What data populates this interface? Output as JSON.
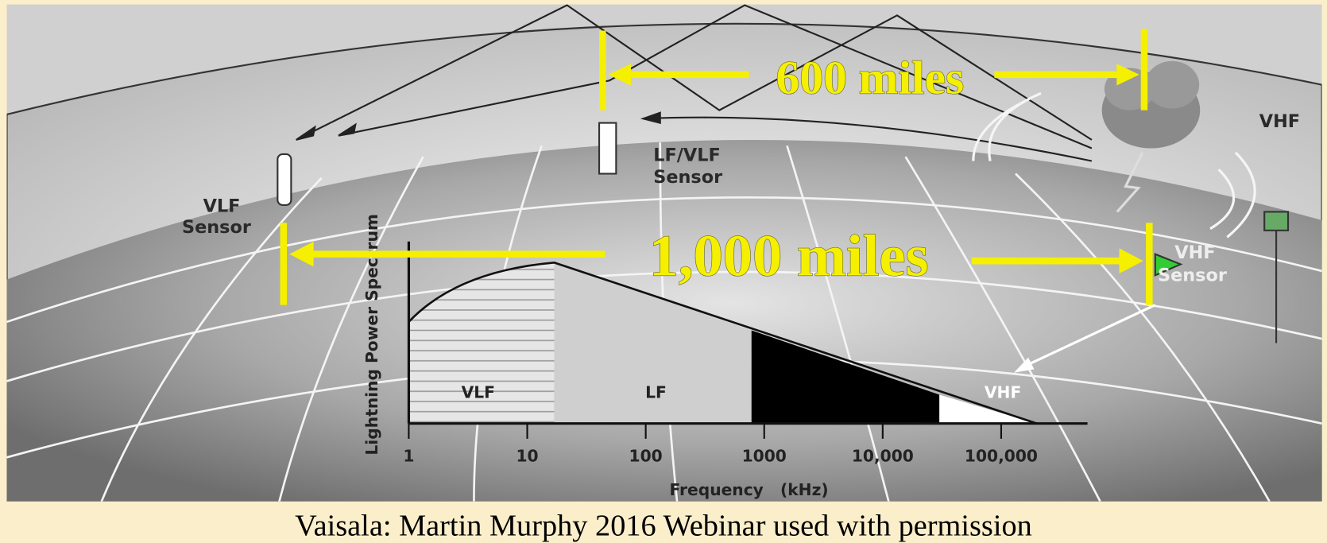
{
  "diagram": {
    "distances": {
      "outer": "600 miles",
      "inner": "1,000 miles"
    },
    "labels": {
      "vhf_storm": "VHF",
      "lf_vlf_sensor": [
        "LF/VLF",
        "Sensor"
      ],
      "vlf_sensor": [
        "VLF",
        "Sensor"
      ],
      "vhf_sensor": [
        "VHF",
        "Sensor"
      ]
    },
    "spectrum": {
      "y_label": "Lightning Power Spectrum",
      "x_label": "Frequency   (kHz)",
      "bands": [
        "VLF",
        "LF",
        "VHF"
      ],
      "ticks": [
        "1",
        "10",
        "100",
        "1000",
        "10,000",
        "100,000"
      ]
    }
  },
  "caption": "Vaisala: Martin Murphy 2016 Webinar used with permission"
}
